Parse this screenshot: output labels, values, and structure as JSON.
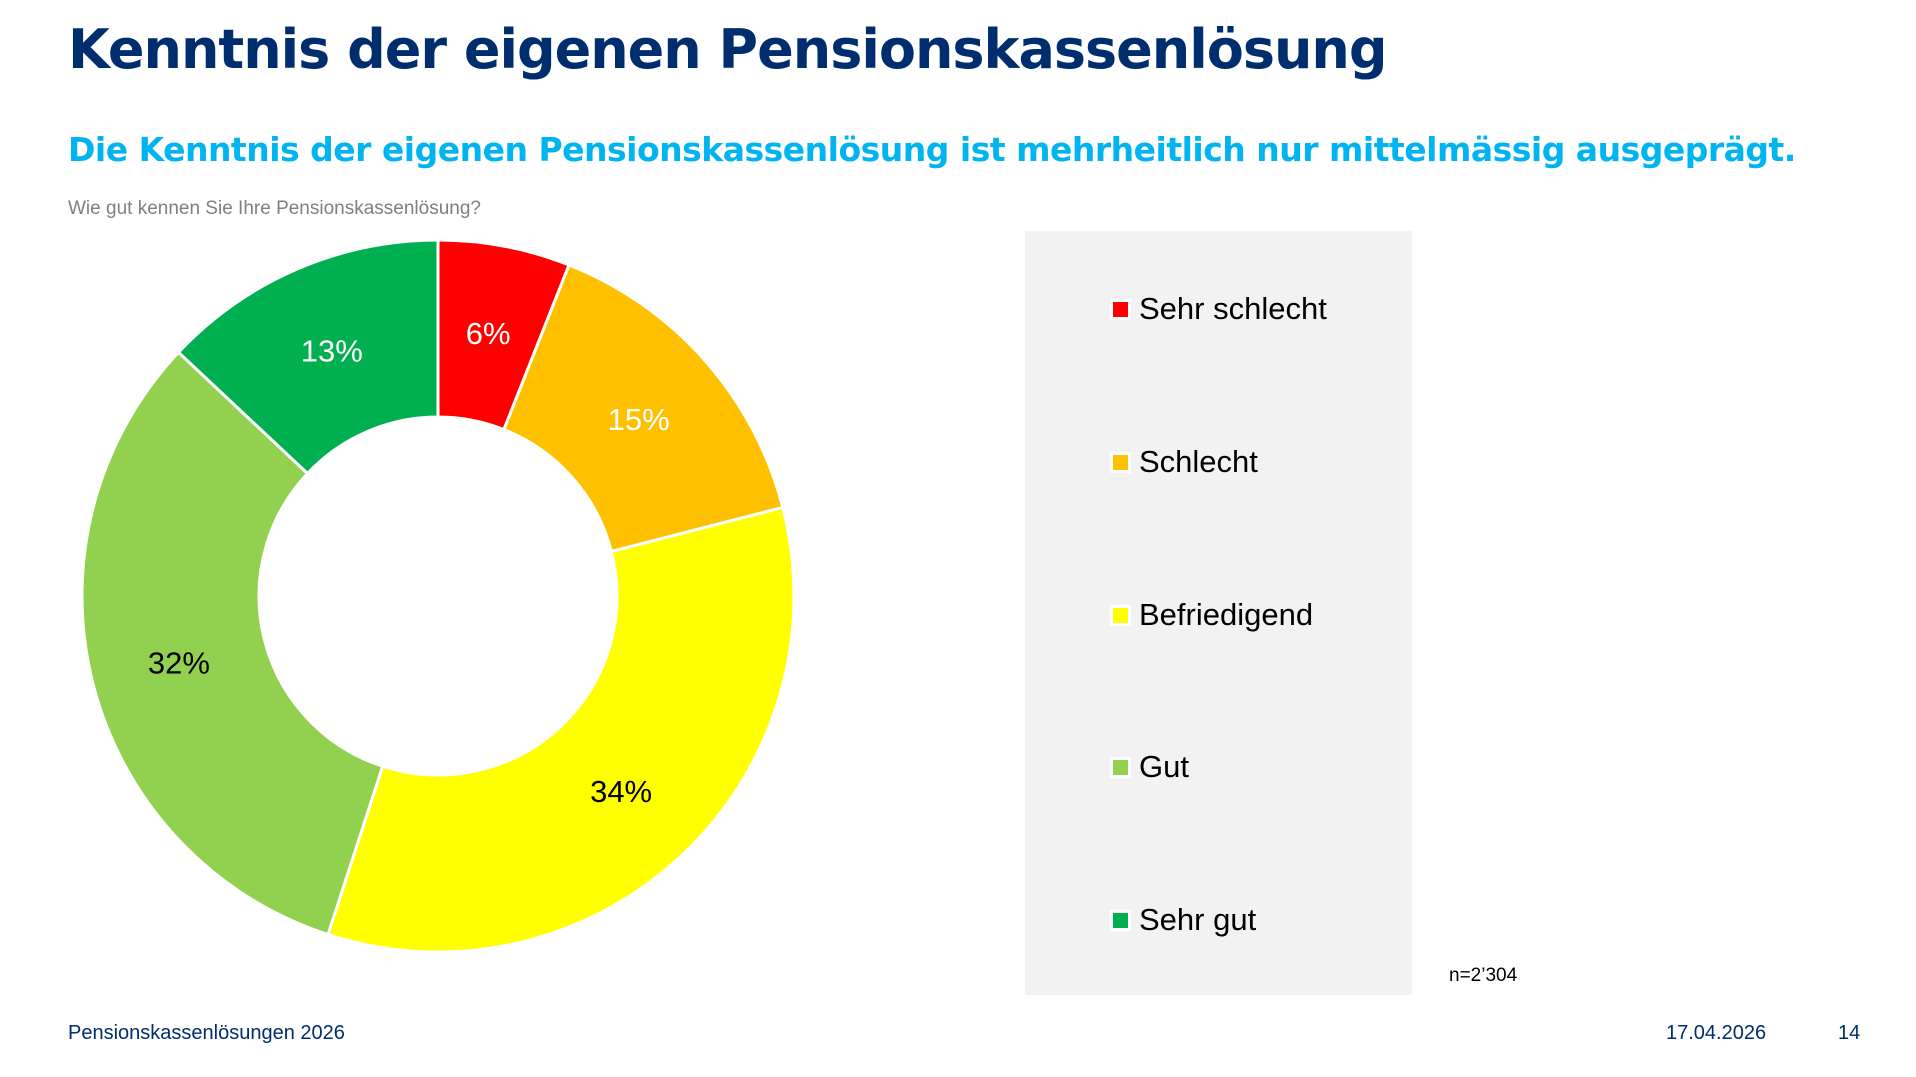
{
  "header": {
    "title": "Kenntnis der eigenen Pensionskassenlösung",
    "subtitle": "Die Kenntnis der eigenen Pensionskassenlösung ist mehrheitlich nur mittelmässig ausgeprägt."
  },
  "chart_data": {
    "type": "pie",
    "variant": "donut",
    "title": "Wie gut kennen Sie Ihre Pensionskassenlösung?",
    "categories": [
      "Sehr schlecht",
      "Schlecht",
      "Befriedigend",
      "Gut",
      "Sehr gut"
    ],
    "values": [
      6,
      15,
      34,
      32,
      13
    ],
    "data_labels": [
      "6%",
      "15%",
      "34%",
      "32%",
      "13%"
    ],
    "colors": [
      "#FF0000",
      "#FFC000",
      "#FFFF00",
      "#92D050",
      "#00B050"
    ],
    "label_colors": [
      "#FFFFFF",
      "#FFFFFF",
      "#000000",
      "#000000",
      "#FFFFFF"
    ],
    "legend_position": "right",
    "sample_size": "n=2’304"
  },
  "footer": {
    "left": "Pensionskassenlösungen 2026",
    "date": "17.04.2026",
    "page": "14"
  }
}
